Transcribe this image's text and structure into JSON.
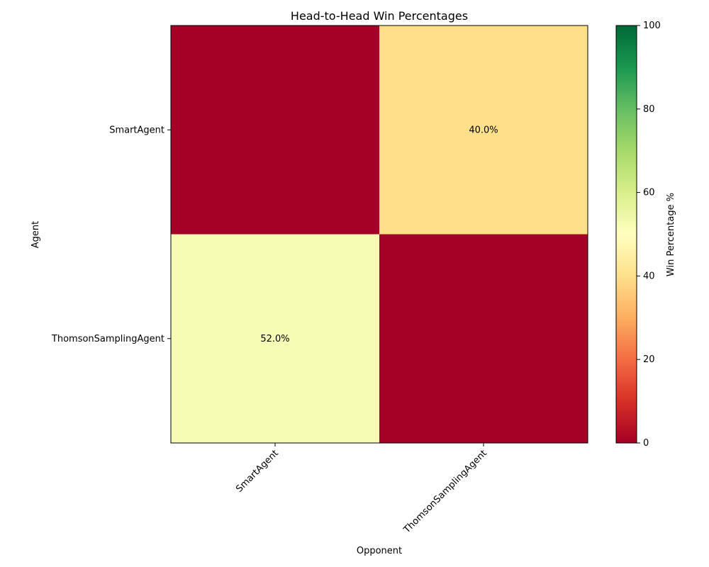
{
  "chart_data": {
    "type": "heatmap",
    "title": "Head-to-Head Win Percentages",
    "xlabel": "Opponent",
    "ylabel": "Agent",
    "rows": [
      "SmartAgent",
      "ThomsonSamplingAgent"
    ],
    "columns": [
      "SmartAgent",
      "ThomsonSamplingAgent"
    ],
    "values": [
      [
        0,
        40.0
      ],
      [
        52.0,
        0
      ]
    ],
    "cell_labels": [
      [
        "",
        "40.0%"
      ],
      [
        "52.0%",
        ""
      ]
    ],
    "colorbar": {
      "label": "Win Percentage %",
      "range": [
        0,
        100
      ],
      "ticks": [
        0,
        20,
        40,
        60,
        80,
        100
      ],
      "colormap": "RdYlGn"
    },
    "x_tick_rotation_deg": 45,
    "grid": false
  }
}
